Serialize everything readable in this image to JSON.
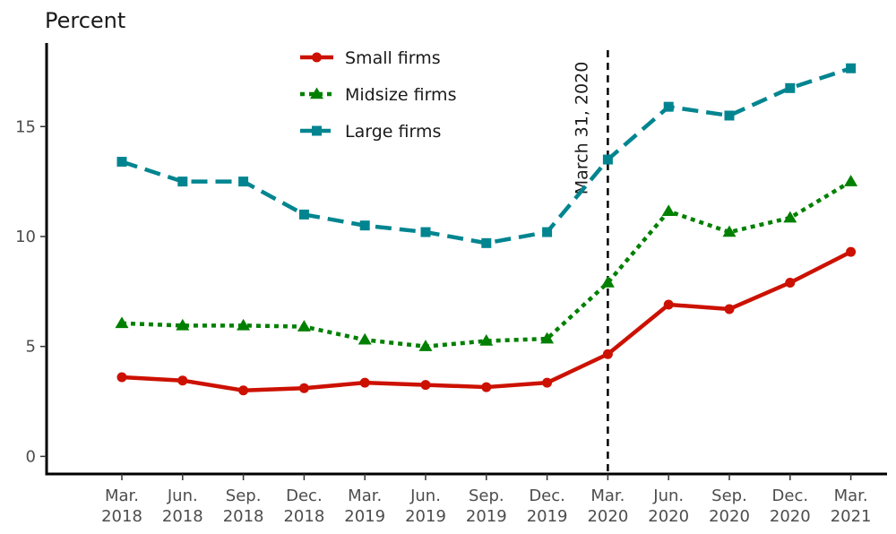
{
  "chart_data": {
    "type": "line",
    "ylabel": "Percent",
    "ylim": [
      -0.8,
      18.8
    ],
    "yticks": [
      0,
      5,
      10,
      15
    ],
    "categories": [
      [
        "Mar.",
        "2018"
      ],
      [
        "Jun.",
        "2018"
      ],
      [
        "Sep.",
        "2018"
      ],
      [
        "Dec.",
        "2018"
      ],
      [
        "Mar.",
        "2019"
      ],
      [
        "Jun.",
        "2019"
      ],
      [
        "Sep.",
        "2019"
      ],
      [
        "Dec.",
        "2019"
      ],
      [
        "Mar.",
        "2020"
      ],
      [
        "Jun.",
        "2020"
      ],
      [
        "Sep.",
        "2020"
      ],
      [
        "Dec.",
        "2020"
      ],
      [
        "Mar.",
        "2021"
      ]
    ],
    "annotation": {
      "label": "March 31, 2020",
      "category_index": 8,
      "style": "dashed vertical line"
    },
    "legend_position": "top-center",
    "series": [
      {
        "name": "Small firms",
        "color": "#cc1100",
        "line_style": "solid",
        "marker": "circle",
        "values": [
          3.6,
          3.45,
          3.0,
          3.1,
          3.35,
          3.25,
          3.15,
          3.35,
          4.65,
          6.9,
          6.7,
          7.9,
          9.3
        ]
      },
      {
        "name": "Midsize firms",
        "color": "#008000",
        "line_style": "dotted",
        "marker": "triangle",
        "values": [
          6.05,
          5.95,
          5.95,
          5.9,
          5.3,
          5.0,
          5.25,
          5.35,
          7.9,
          11.15,
          10.2,
          10.85,
          12.5
        ]
      },
      {
        "name": "Large firms",
        "color": "#008590",
        "line_style": "dashed",
        "marker": "square",
        "values": [
          13.4,
          12.5,
          12.5,
          11.0,
          10.5,
          10.2,
          9.7,
          10.2,
          13.5,
          15.9,
          15.5,
          16.75,
          17.65
        ]
      }
    ]
  }
}
